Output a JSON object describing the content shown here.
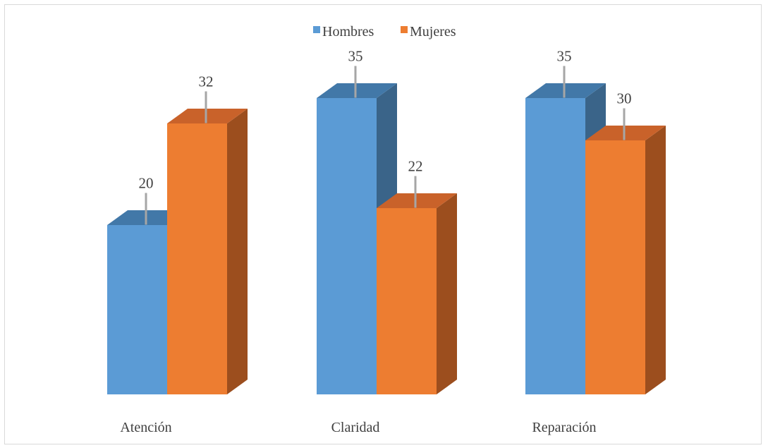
{
  "chart_data": {
    "type": "bar",
    "categories": [
      "Atención",
      "Claridad",
      "Reparación"
    ],
    "series": [
      {
        "name": "Hombres",
        "values": [
          20,
          35,
          35
        ],
        "color": "#5b9bd5",
        "top_color": "#4278a8",
        "side_color": "#3a6489"
      },
      {
        "name": "Mujeres",
        "values": [
          32,
          22,
          30
        ],
        "color": "#ed7d31",
        "top_color": "#c9622a",
        "side_color": "#9c4e1e"
      }
    ],
    "title": "",
    "xlabel": "",
    "ylabel": "",
    "ylim": [
      0,
      35
    ],
    "grid": false,
    "legend": "top-center",
    "style": "3d-column",
    "leader_color": "#a6a6a6"
  }
}
